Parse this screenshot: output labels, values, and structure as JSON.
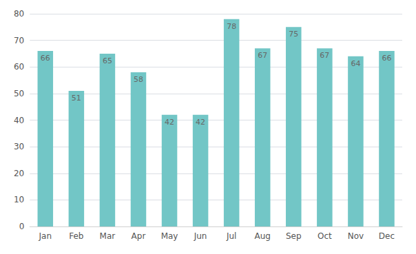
{
  "chart_data": {
    "type": "bar",
    "categories": [
      "Jan",
      "Feb",
      "Mar",
      "Apr",
      "May",
      "Jun",
      "Jul",
      "Aug",
      "Sep",
      "Oct",
      "Nov",
      "Dec"
    ],
    "values": [
      66,
      51,
      65,
      58,
      42,
      42,
      78,
      67,
      75,
      67,
      64,
      66
    ],
    "color": "#72c6c6",
    "ylim": [
      0,
      80
    ],
    "yticks": [
      0,
      10,
      20,
      30,
      40,
      50,
      60,
      70,
      80
    ],
    "grid": true,
    "data_labels": true
  }
}
